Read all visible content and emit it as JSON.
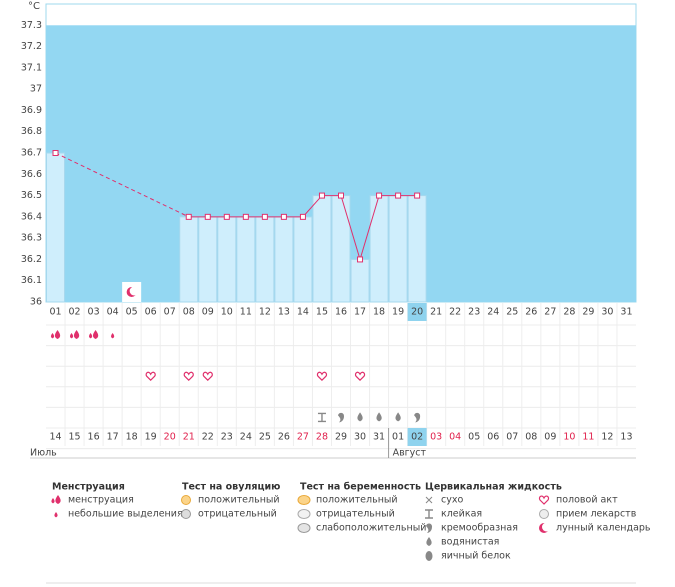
{
  "chart_data": {
    "type": "line",
    "y_label": "°C",
    "categories": [
      "01",
      "02",
      "03",
      "04",
      "05",
      "06",
      "07",
      "08",
      "09",
      "10",
      "11",
      "12",
      "13",
      "14",
      "15",
      "16",
      "17",
      "18",
      "19",
      "20",
      "21",
      "22",
      "23",
      "24",
      "25",
      "26",
      "27",
      "28",
      "29",
      "30",
      "31"
    ],
    "values": [
      36.7,
      null,
      null,
      null,
      null,
      null,
      null,
      36.4,
      36.4,
      36.4,
      36.4,
      36.4,
      36.4,
      36.4,
      36.5,
      36.5,
      36.2,
      36.5,
      36.5,
      36.5,
      null,
      null,
      null,
      null,
      null,
      null,
      null,
      null,
      null,
      null,
      null
    ],
    "color": "#e0306c",
    "bar_color": "#cfeefc",
    "background": "#93d7f2",
    "ylim": [
      36,
      37.4
    ],
    "yticks": [
      36,
      36.1,
      36.2,
      36.3,
      36.4,
      36.5,
      36.6,
      36.7,
      36.8,
      36.9,
      37,
      37.1,
      37.2,
      37.3
    ],
    "highlight_day": 20,
    "moon_days": [
      5
    ]
  },
  "calendar": {
    "dates": [
      "14",
      "15",
      "16",
      "17",
      "18",
      "19",
      "20",
      "21",
      "22",
      "23",
      "24",
      "25",
      "26",
      "27",
      "28",
      "29",
      "30",
      "31",
      "01",
      "02",
      "03",
      "04",
      "05",
      "06",
      "07",
      "08",
      "09",
      "10",
      "11",
      "12",
      "13"
    ],
    "weekend": [
      false,
      false,
      false,
      false,
      false,
      false,
      true,
      true,
      false,
      false,
      false,
      false,
      false,
      true,
      true,
      false,
      false,
      false,
      false,
      false,
      true,
      true,
      false,
      false,
      false,
      false,
      false,
      true,
      true,
      false,
      false
    ],
    "months": [
      {
        "label": "Июль",
        "start": 0
      },
      {
        "label": "Август",
        "start": 18
      }
    ],
    "symbols": [
      {
        "row": 0,
        "day": 1,
        "icon": "menstruation"
      },
      {
        "row": 0,
        "day": 2,
        "icon": "menstruation"
      },
      {
        "row": 0,
        "day": 3,
        "icon": "menstruation"
      },
      {
        "row": 0,
        "day": 4,
        "icon": "spotting"
      },
      {
        "row": 2,
        "day": 6,
        "icon": "intercourse"
      },
      {
        "row": 2,
        "day": 8,
        "icon": "intercourse"
      },
      {
        "row": 2,
        "day": 9,
        "icon": "intercourse"
      },
      {
        "row": 2,
        "day": 15,
        "icon": "intercourse"
      },
      {
        "row": 2,
        "day": 17,
        "icon": "intercourse"
      },
      {
        "row": 4,
        "day": 15,
        "icon": "sticky"
      },
      {
        "row": 4,
        "day": 16,
        "icon": "creamy"
      },
      {
        "row": 4,
        "day": 17,
        "icon": "watery"
      },
      {
        "row": 4,
        "day": 18,
        "icon": "watery"
      },
      {
        "row": 4,
        "day": 19,
        "icon": "watery"
      },
      {
        "row": 4,
        "day": 20,
        "icon": "creamy"
      }
    ]
  },
  "legend": [
    {
      "title": "Менструация",
      "items": [
        {
          "icon": "menstruation",
          "label": "менструация"
        },
        {
          "icon": "spotting",
          "label": "небольшие выделения"
        }
      ]
    },
    {
      "title": "Тест на овуляцию",
      "items": [
        {
          "icon": "ovu-pos",
          "label": "положительный"
        },
        {
          "icon": "ovu-neg",
          "label": "отрицательный"
        }
      ]
    },
    {
      "title": "Тест на беременность",
      "items": [
        {
          "icon": "preg-pos",
          "label": "положительный"
        },
        {
          "icon": "preg-neg",
          "label": "отрицательный"
        },
        {
          "icon": "preg-weak",
          "label": "слабоположительный"
        }
      ]
    },
    {
      "title": "Цервикальная жидкость",
      "items": [
        {
          "icon": "dry",
          "label": "сухо"
        },
        {
          "icon": "sticky",
          "label": "клейкая"
        },
        {
          "icon": "creamy",
          "label": "кремообразная"
        },
        {
          "icon": "watery",
          "label": "водянистая"
        },
        {
          "icon": "eggwhite",
          "label": "яичный белок"
        }
      ]
    },
    {
      "items": [
        {
          "icon": "intercourse",
          "label": "половой акт"
        },
        {
          "icon": "medication",
          "label": "прием лекарств"
        },
        {
          "icon": "moon",
          "label": "лунный календарь"
        }
      ]
    }
  ]
}
